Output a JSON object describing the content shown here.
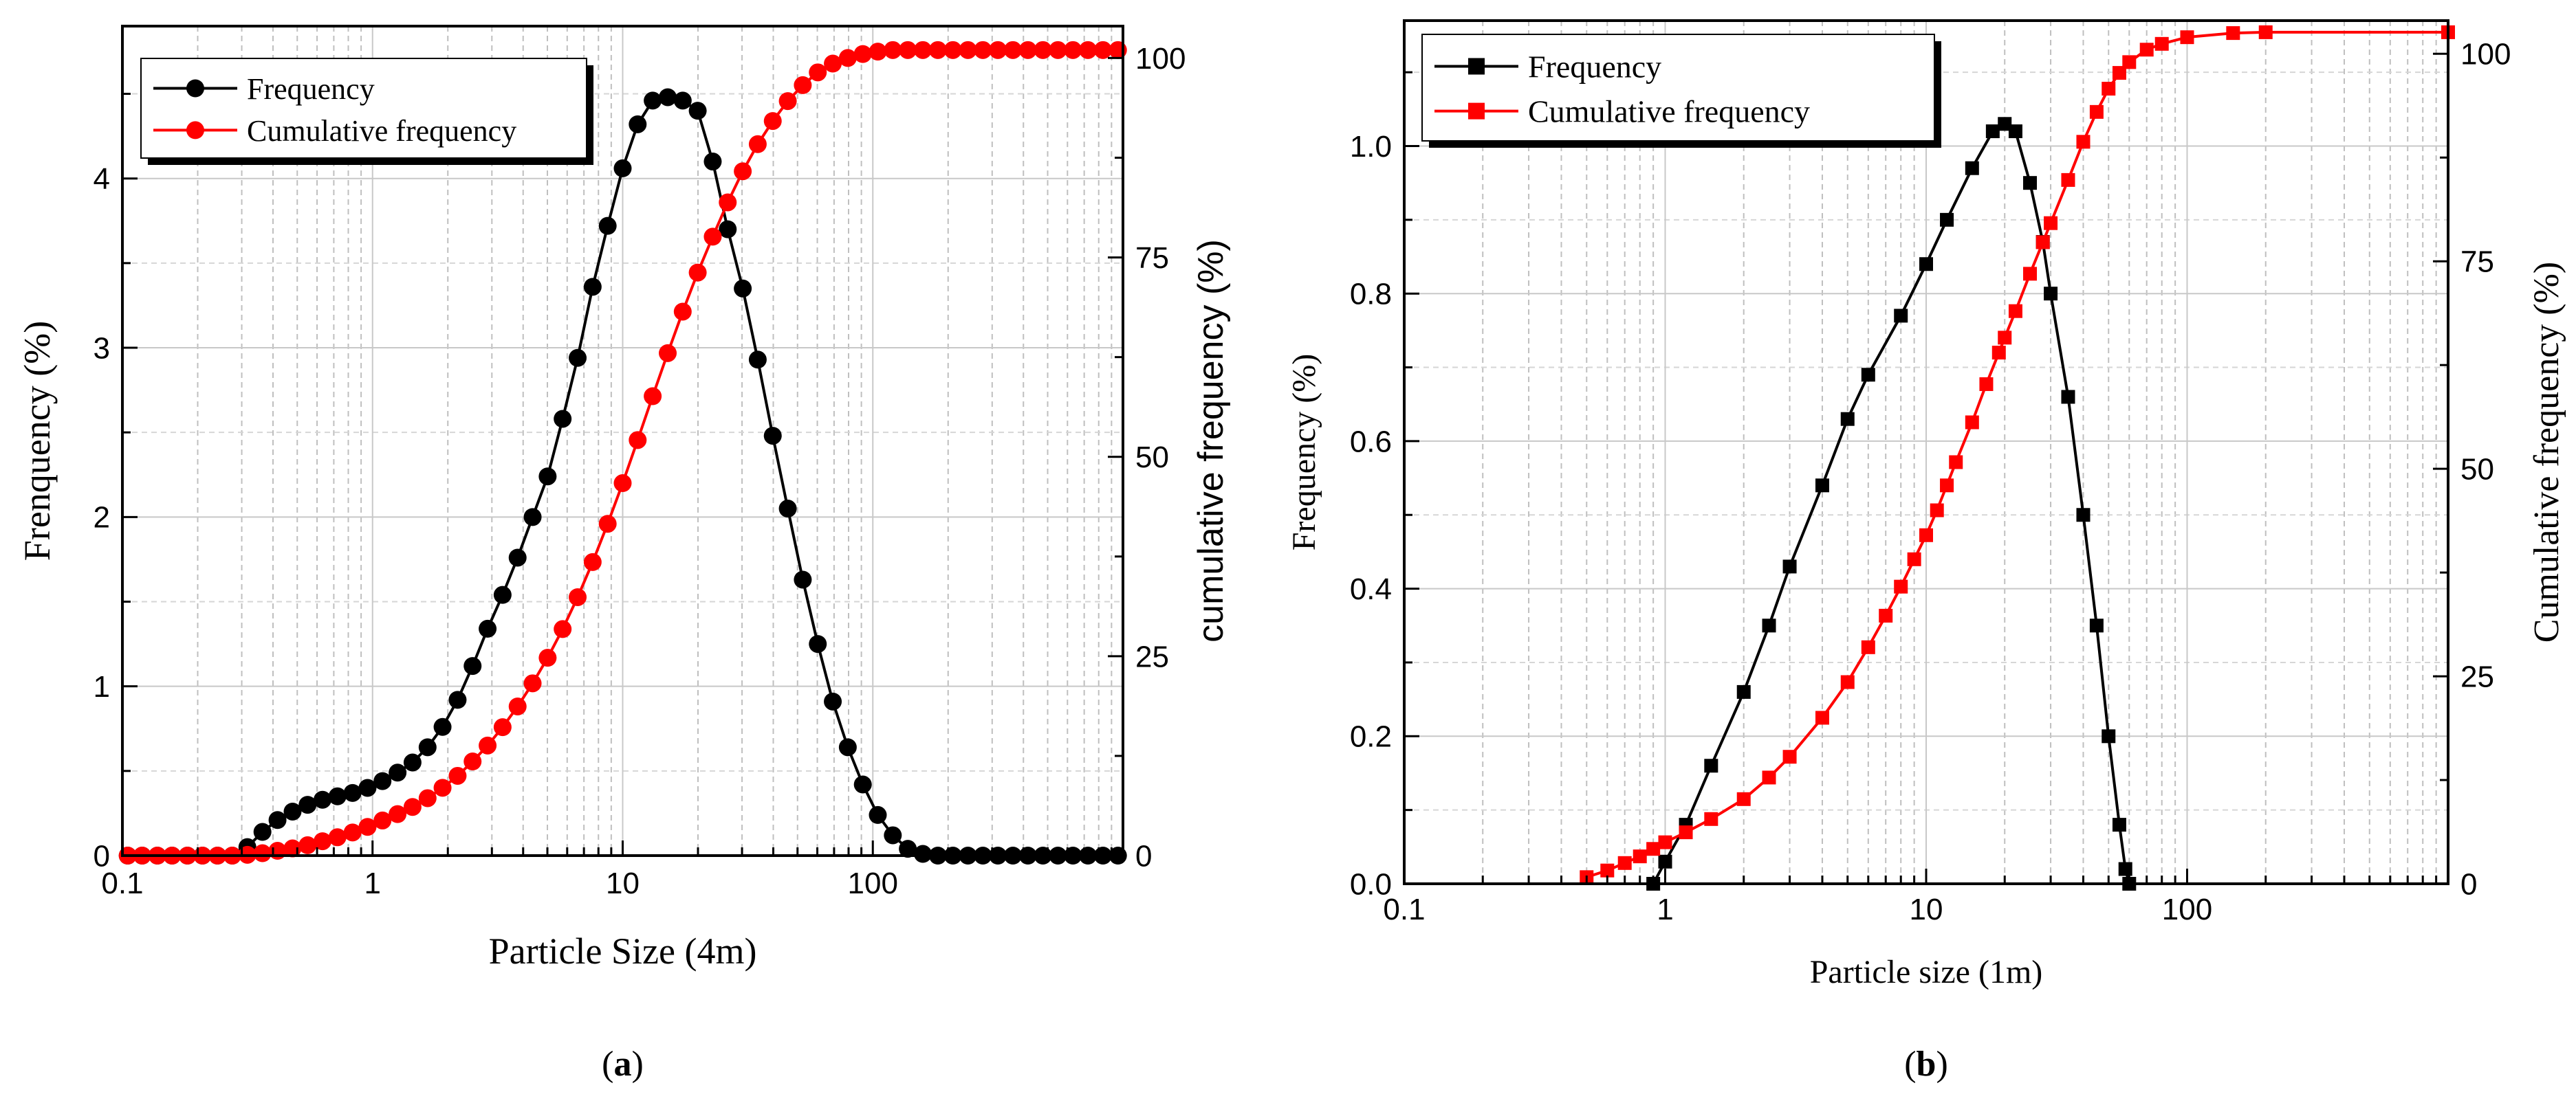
{
  "chart_data": [
    {
      "type": "line",
      "panel_label": "(a)",
      "panel_letter": "a",
      "xlabel": "Particle Size (4m)",
      "ylabel_left": "Frenquency (%)",
      "ylabel_right": "cumulative frequency (%)",
      "xscale": "log",
      "xlim": [
        0.1,
        1000
      ],
      "ylim_left": [
        0,
        4.9
      ],
      "ylim_right": [
        0,
        104
      ],
      "x_tick_labels": [
        "0.1",
        "1",
        "10",
        "100"
      ],
      "y_left_tick_labels": [
        "0",
        "1",
        "2",
        "3",
        "4"
      ],
      "y_right_tick_labels": [
        "0",
        "25",
        "50",
        "75",
        "100"
      ],
      "legend_position": "top-left",
      "grid": true,
      "series": [
        {
          "name": "Frequency",
          "axis": "left",
          "color": "#000000",
          "marker": "circle",
          "x": [
            0.105,
            0.12,
            0.138,
            0.158,
            0.182,
            0.209,
            0.24,
            0.275,
            0.316,
            0.363,
            0.417,
            0.479,
            0.55,
            0.631,
            0.724,
            0.832,
            0.955,
            1.096,
            1.259,
            1.445,
            1.66,
            1.905,
            2.188,
            2.512,
            2.884,
            3.311,
            3.802,
            4.365,
            5.012,
            5.754,
            6.607,
            7.586,
            8.71,
            10.0,
            11.48,
            13.18,
            15.14,
            17.38,
            19.95,
            22.91,
            26.3,
            30.2,
            34.67,
            39.81,
            45.71,
            52.48,
            60.26,
            69.18,
            79.43,
            91.2,
            104.7,
            120.2,
            138.0,
            158.5,
            182.0,
            209.0,
            240.0,
            275.4,
            316.2,
            363.1,
            416.9,
            478.6,
            549.5,
            631.0,
            724.4,
            831.8,
            955.0
          ],
          "values": [
            0,
            0,
            0,
            0,
            0,
            0,
            0,
            0,
            0.05,
            0.14,
            0.21,
            0.26,
            0.3,
            0.33,
            0.35,
            0.37,
            0.4,
            0.44,
            0.49,
            0.55,
            0.64,
            0.76,
            0.92,
            1.12,
            1.34,
            1.54,
            1.76,
            2.0,
            2.24,
            2.58,
            2.94,
            3.36,
            3.72,
            4.06,
            4.32,
            4.46,
            4.48,
            4.46,
            4.4,
            4.1,
            3.7,
            3.35,
            2.93,
            2.48,
            2.05,
            1.63,
            1.25,
            0.91,
            0.64,
            0.42,
            0.24,
            0.12,
            0.04,
            0.01,
            0,
            0,
            0,
            0,
            0,
            0,
            0,
            0,
            0,
            0,
            0,
            0,
            0
          ]
        },
        {
          "name": "Cumulative frequency",
          "axis": "right",
          "color": "#ff0000",
          "marker": "circle",
          "x": [
            0.105,
            0.12,
            0.138,
            0.158,
            0.182,
            0.209,
            0.24,
            0.275,
            0.316,
            0.363,
            0.417,
            0.479,
            0.55,
            0.631,
            0.724,
            0.832,
            0.955,
            1.096,
            1.259,
            1.445,
            1.66,
            1.905,
            2.188,
            2.512,
            2.884,
            3.311,
            3.802,
            4.365,
            5.012,
            5.754,
            6.607,
            7.586,
            8.71,
            10.0,
            11.48,
            13.18,
            15.14,
            17.38,
            19.95,
            22.91,
            26.3,
            30.2,
            34.67,
            39.81,
            45.71,
            52.48,
            60.26,
            69.18,
            79.43,
            91.2,
            104.7,
            120.2,
            138.0,
            158.5,
            182.0,
            209.0,
            240.0,
            275.4,
            316.2,
            363.1,
            416.9,
            478.6,
            549.5,
            631.0,
            724.4,
            831.8,
            955.0
          ],
          "values": [
            0,
            0,
            0,
            0,
            0,
            0,
            0,
            0,
            0.1,
            0.3,
            0.6,
            0.9,
            1.3,
            1.8,
            2.3,
            2.9,
            3.6,
            4.4,
            5.2,
            6.1,
            7.2,
            8.5,
            10,
            11.8,
            13.8,
            16.1,
            18.7,
            21.6,
            24.8,
            28.4,
            32.4,
            36.8,
            41.6,
            46.7,
            52.1,
            57.6,
            63,
            68.2,
            73.1,
            77.6,
            81.9,
            85.8,
            89.2,
            92.1,
            94.6,
            96.6,
            98.2,
            99.3,
            100,
            100.5,
            100.8,
            101,
            101,
            101,
            101,
            101,
            101,
            101,
            101,
            101,
            101,
            101,
            101,
            101,
            101,
            101,
            101
          ]
        }
      ]
    },
    {
      "type": "line",
      "panel_label": "(b)",
      "panel_letter": "b",
      "xlabel": "Particle size (1m)",
      "ylabel_left": "Frequency (%)",
      "ylabel_right": "Cumulative frequency (%)",
      "xscale": "log",
      "xlim": [
        0.1,
        1000
      ],
      "ylim_left": [
        0,
        1.17
      ],
      "ylim_right": [
        0,
        104
      ],
      "x_tick_labels": [
        "0.1",
        "1",
        "10",
        "100"
      ],
      "y_left_tick_labels": [
        "0.0",
        "0.2",
        "0.4",
        "0.6",
        "0.8",
        "1.0"
      ],
      "y_right_tick_labels": [
        "0",
        "25",
        "50",
        "75",
        "100"
      ],
      "legend_position": "top-left",
      "grid": true,
      "series": [
        {
          "name": "Frequency",
          "axis": "left",
          "color": "#000000",
          "marker": "square",
          "x": [
            0.9,
            1.0,
            1.2,
            1.5,
            2.0,
            2.5,
            3.0,
            4.0,
            5.0,
            6.0,
            8.0,
            10.0,
            12.0,
            15.0,
            18.0,
            20.0,
            22.0,
            25.0,
            28.0,
            30.0,
            35.0,
            40.0,
            45.0,
            50.0,
            55.0,
            58.0,
            60.0
          ],
          "values": [
            0.0,
            0.03,
            0.08,
            0.16,
            0.26,
            0.35,
            0.43,
            0.54,
            0.63,
            0.69,
            0.77,
            0.84,
            0.9,
            0.97,
            1.02,
            1.03,
            1.02,
            0.95,
            0.87,
            0.8,
            0.66,
            0.5,
            0.35,
            0.2,
            0.08,
            0.02,
            0.0
          ]
        },
        {
          "name": "Cumulative frequency",
          "axis": "right",
          "color": "#ff0000",
          "marker": "square",
          "x": [
            0.5,
            0.6,
            0.7,
            0.8,
            0.9,
            1.0,
            1.2,
            1.5,
            2.0,
            2.5,
            3.0,
            4.0,
            5.0,
            6.0,
            7.0,
            8.0,
            9.0,
            10.0,
            11.0,
            12.0,
            13.0,
            15.0,
            17.0,
            19.0,
            20.0,
            22.0,
            25.0,
            28.0,
            30.0,
            35.0,
            40.0,
            45.0,
            50.0,
            55.0,
            60.0,
            70.0,
            80.0,
            100.0,
            150.0,
            200.0,
            1000.0
          ],
          "values": [
            0.8,
            1.6,
            2.5,
            3.3,
            4.2,
            5.0,
            6.2,
            7.8,
            10.2,
            12.8,
            15.3,
            20.0,
            24.3,
            28.5,
            32.3,
            35.8,
            39.1,
            42.0,
            45.0,
            48.0,
            50.8,
            55.6,
            60.2,
            64.0,
            65.8,
            69.0,
            73.5,
            77.3,
            79.6,
            84.8,
            89.4,
            93.0,
            95.8,
            97.7,
            99.0,
            100.5,
            101.2,
            102.0,
            102.5,
            102.6,
            102.6
          ]
        }
      ]
    }
  ]
}
